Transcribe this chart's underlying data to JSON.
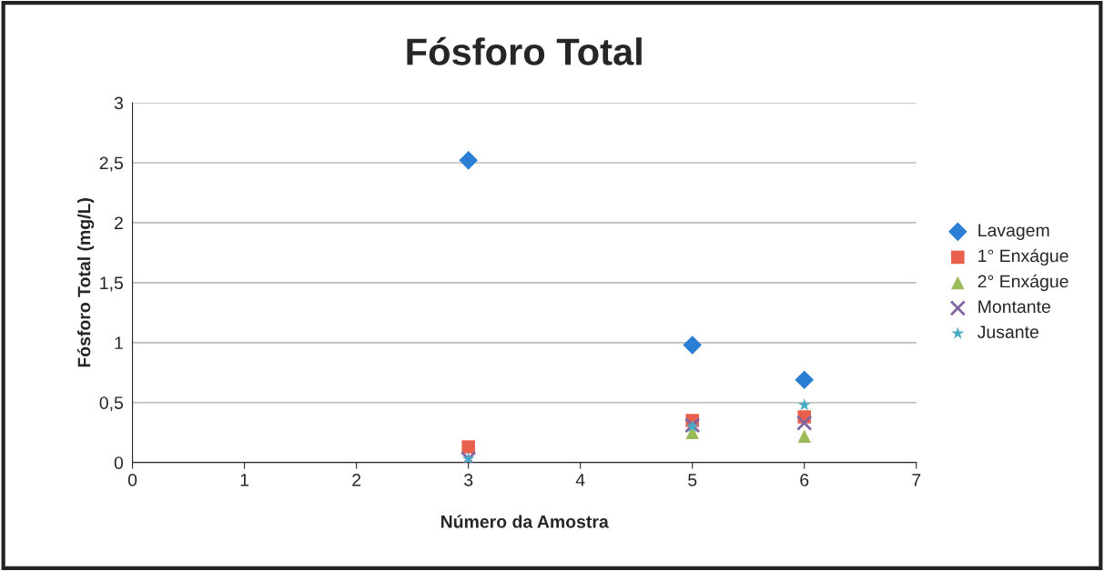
{
  "chart_data": {
    "type": "scatter",
    "title": "Fósforo Total",
    "xlabel": "Número da Amostra",
    "ylabel": "Fósforo Total (mg/L)",
    "x": [
      3,
      5,
      6
    ],
    "series": [
      {
        "name": "Lavagem",
        "color": "#2a7fd4",
        "marker": "diamond",
        "values": [
          2.52,
          0.98,
          0.69
        ]
      },
      {
        "name": "1° Enxágue",
        "color": "#e8604c",
        "marker": "square",
        "values": [
          0.13,
          0.35,
          0.38
        ]
      },
      {
        "name": "2° Enxágue",
        "color": "#9bbb59",
        "marker": "triangle",
        "values": [
          null,
          0.25,
          0.22
        ]
      },
      {
        "name": "Montante",
        "color": "#8064a2",
        "marker": "cross",
        "values": [
          0.03,
          0.31,
          0.33
        ]
      },
      {
        "name": "Jusante",
        "color": "#4bacc6",
        "marker": "star",
        "values": [
          0.03,
          0.3,
          0.48
        ]
      }
    ],
    "xlim": [
      0,
      7
    ],
    "xticks": [
      0,
      1,
      2,
      3,
      4,
      5,
      6,
      7
    ],
    "ylim": [
      0,
      3
    ],
    "yticks": [
      0,
      {
        "value": 0.5,
        "label": "0,5"
      },
      1,
      {
        "value": 1.5,
        "label": "1,5"
      },
      2,
      {
        "value": 2.5,
        "label": "2,5"
      },
      3
    ],
    "grid": "y",
    "legend": "right"
  }
}
